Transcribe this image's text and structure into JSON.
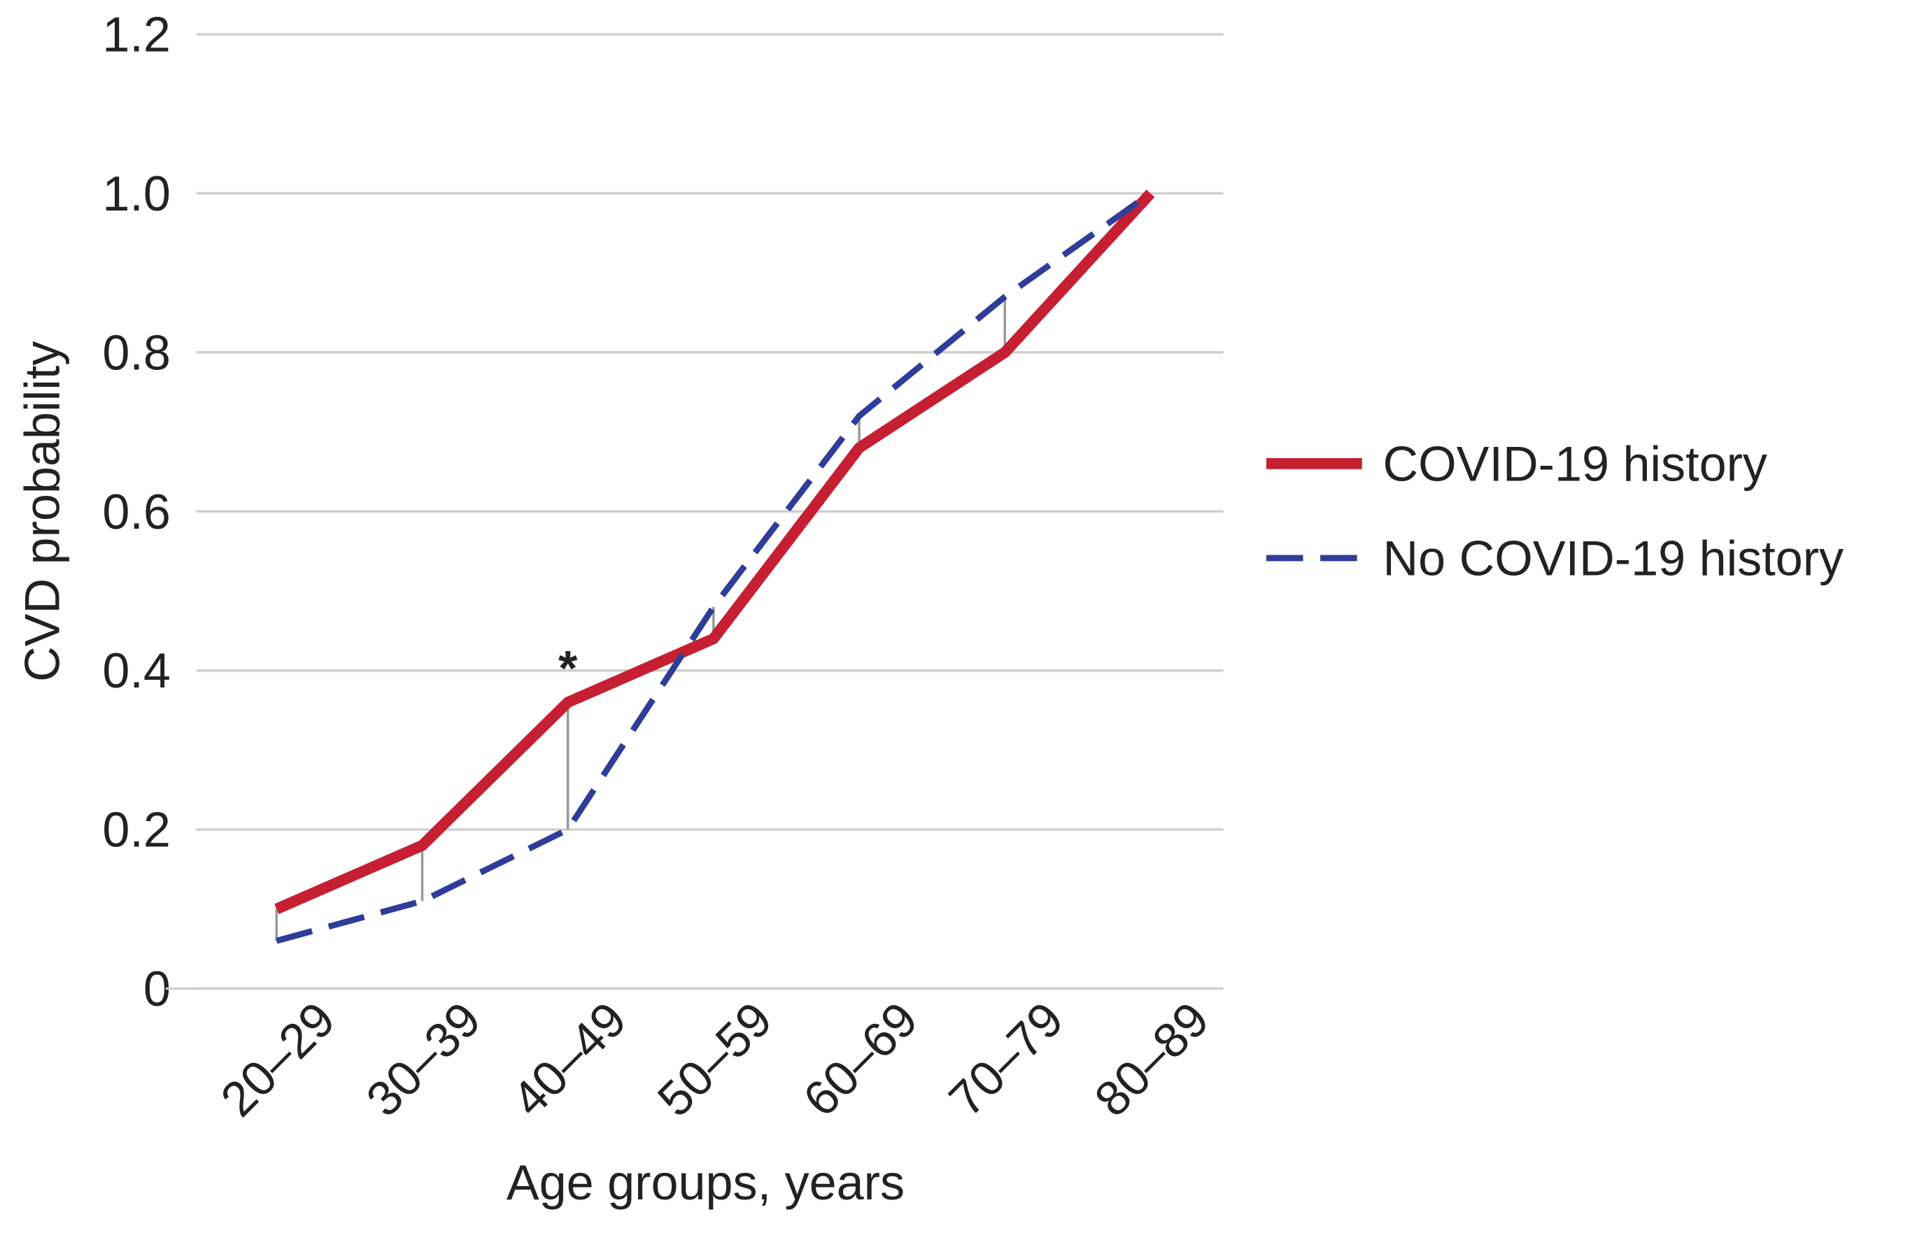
{
  "chart_data": {
    "type": "line",
    "x_label": "Age groups, years",
    "y_label": "CVD probability",
    "categories": [
      "20–29",
      "30–39",
      "40–49",
      "50–59",
      "60–69",
      "70–79",
      "80–89"
    ],
    "series": [
      {
        "name": "COVID-19 history",
        "color": "#c61f32",
        "style": "solid",
        "values": [
          0.1,
          0.18,
          0.36,
          0.44,
          0.68,
          0.8,
          1.0
        ]
      },
      {
        "name": "No COVID-19 history",
        "color": "#2e3d9a",
        "style": "dashed",
        "values": [
          0.06,
          0.11,
          0.2,
          0.48,
          0.72,
          0.87,
          1.0
        ]
      }
    ],
    "ylim": [
      0,
      1.2
    ],
    "yticks": [
      0,
      0.2,
      0.4,
      0.6,
      {
        "value": 1.0,
        "label": "1.0"
      },
      0.8,
      1.2
    ],
    "grid": true,
    "legend": "right",
    "annotations": [
      {
        "text": "*",
        "x": "40–49"
      }
    ]
  }
}
